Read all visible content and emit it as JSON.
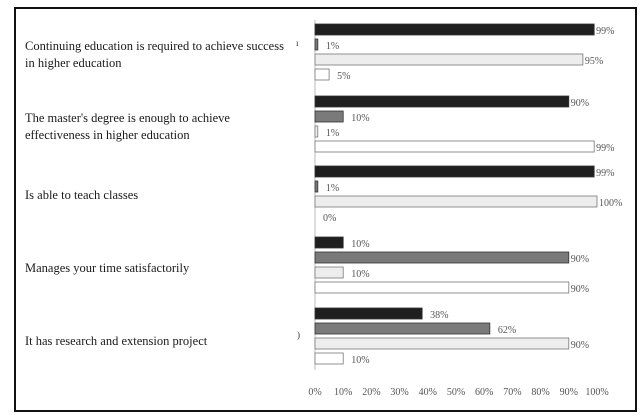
{
  "chart_data": {
    "type": "bar",
    "orientation": "horizontal",
    "categories": [
      "Continuing education is required to achieve success in higher education",
      "The master's degree is enough to achieve effectiveness in higher education",
      "Is able to teach classes",
      "Manages your time satisfactorily",
      "It has research and extension project"
    ],
    "series": [
      {
        "values": [
          99,
          90,
          99,
          10,
          38
        ],
        "labels": [
          "99%",
          "90%",
          "99%",
          "10%",
          "38%"
        ],
        "color": "#1f1f1f"
      },
      {
        "values": [
          1,
          10,
          1,
          90,
          62
        ],
        "labels": [
          "1%",
          "10%",
          "1%",
          "90%",
          "62%"
        ],
        "color": "#7a7a7a"
      },
      {
        "values": [
          95,
          1,
          100,
          10,
          90
        ],
        "labels": [
          "95%",
          "1%",
          "100%",
          "10%",
          "90%"
        ],
        "color": "#ededed"
      },
      {
        "values": [
          5,
          99,
          0,
          90,
          10
        ],
        "labels": [
          "5%",
          "99%",
          "0%",
          "90%",
          "10%"
        ],
        "color": "#ffffff"
      }
    ],
    "xlim": [
      0,
      100
    ],
    "xticks": [
      "0%",
      "10%",
      "20%",
      "30%",
      "40%",
      "50%",
      "60%",
      "70%",
      "80%",
      "90%",
      "100%"
    ],
    "grid": false,
    "legend": "none"
  },
  "labels": {
    "cat0": "Continuing education is required to achieve success in higher education",
    "cat1": "The master's degree is enough to achieve effectiveness in higher education",
    "cat2": "Is able to teach classes",
    "cat3": "Manages your time satisfactorily",
    "cat4": "It has research and extension project"
  }
}
